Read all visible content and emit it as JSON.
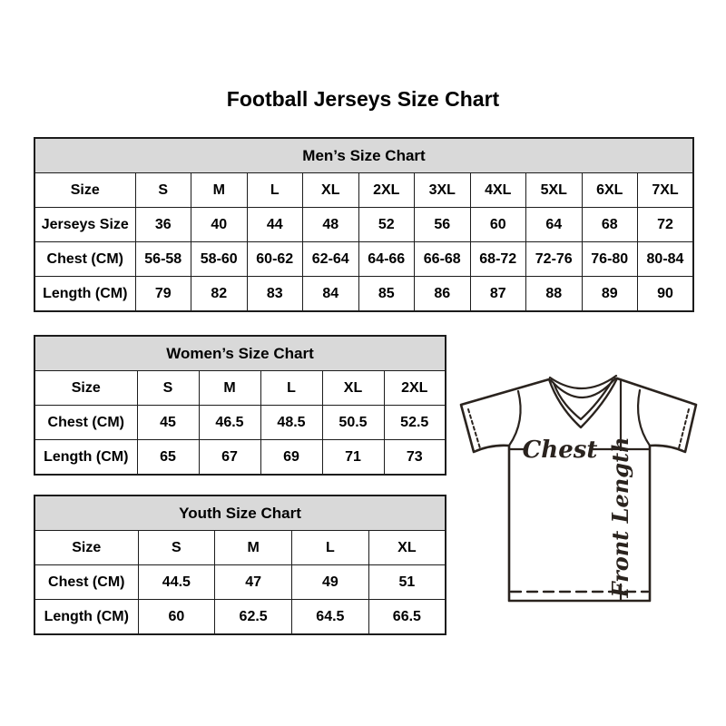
{
  "page": {
    "title": "Football Jerseys Size Chart"
  },
  "tables": {
    "men": {
      "title": "Men’s Size Chart",
      "rows": [
        [
          "Size",
          "S",
          "M",
          "L",
          "XL",
          "2XL",
          "3XL",
          "4XL",
          "5XL",
          "6XL",
          "7XL"
        ],
        [
          "Jerseys Size",
          "36",
          "40",
          "44",
          "48",
          "52",
          "56",
          "60",
          "64",
          "68",
          "72"
        ],
        [
          "Chest (CM)",
          "56-58",
          "58-60",
          "60-62",
          "62-64",
          "64-66",
          "66-68",
          "68-72",
          "72-76",
          "76-80",
          "80-84"
        ],
        [
          "Length (CM)",
          "79",
          "82",
          "83",
          "84",
          "85",
          "86",
          "87",
          "88",
          "89",
          "90"
        ]
      ]
    },
    "women": {
      "title": "Women’s Size Chart",
      "rows": [
        [
          "Size",
          "S",
          "M",
          "L",
          "XL",
          "2XL"
        ],
        [
          "Chest (CM)",
          "45",
          "46.5",
          "48.5",
          "50.5",
          "52.5"
        ],
        [
          "Length (CM)",
          "65",
          "67",
          "69",
          "71",
          "73"
        ]
      ]
    },
    "youth": {
      "title": "Youth Size Chart",
      "rows": [
        [
          "Size",
          "S",
          "M",
          "L",
          "XL"
        ],
        [
          "Chest (CM)",
          "44.5",
          "47",
          "49",
          "51"
        ],
        [
          "Length (CM)",
          "60",
          "62.5",
          "64.5",
          "66.5"
        ]
      ]
    }
  },
  "diagram": {
    "chest_label": "Chest",
    "front_length_label": "Front Length"
  },
  "colors": {
    "table_header_bg": "#d9d9d9",
    "table_border": "#1c1c1c",
    "diagram_line": "#2a231e",
    "text": "#000000",
    "background": "#ffffff"
  }
}
